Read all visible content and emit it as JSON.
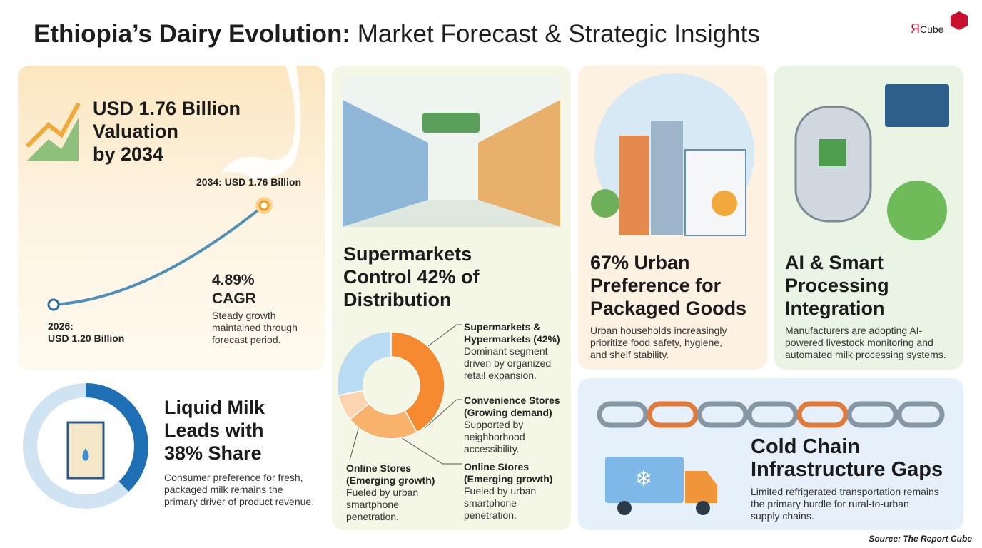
{
  "header": {
    "title_bold": "Ethiopia’s Dairy Evolution:",
    "title_rest": "Market Forecast & Strategic Insights",
    "logo_r": "Я",
    "logo_text": "Cube"
  },
  "valuation": {
    "headline": [
      "USD 1.76 Billion",
      "Valuation",
      "by 2034"
    ],
    "end_label": "2034: USD 1.76 Billion",
    "start_label": [
      "2026:",
      "USD 1.20 Billion"
    ],
    "cagr": [
      "4.89%",
      "CAGR"
    ],
    "cagr_note": [
      "Steady growth",
      "maintained through",
      "forecast period."
    ]
  },
  "distribution": {
    "headline": [
      "Supermarkets",
      "Control 42% of",
      "Distribution"
    ],
    "segments": [
      {
        "title": [
          "Supermarkets &",
          "Hypermarkets (42%)"
        ],
        "note": [
          "Dominant segment",
          "driven by organized",
          "retail expansion."
        ],
        "value": 42,
        "color": "#f5892f"
      },
      {
        "title": [
          "Convenience Stores",
          "(Growing demand)"
        ],
        "note": [
          "Supported by",
          "neighborhood",
          "accessibility."
        ],
        "value": 22,
        "color": "#f9b26b"
      },
      {
        "title": [
          "Online Stores",
          "(Emerging growth)"
        ],
        "note": [
          "Fueled by urban",
          "smartphone",
          "penetration."
        ],
        "value": 8,
        "color": "#fcd5b0"
      }
    ],
    "left_callout": {
      "title": [
        "Online Stores",
        "(Emerging growth)"
      ],
      "note": [
        "Fueled by urban",
        "smartphone",
        "penetration."
      ]
    }
  },
  "urban": {
    "headline": [
      "67% Urban",
      "Preference for",
      "Packaged Goods"
    ],
    "note": [
      "Urban households increasingly",
      "prioritize food safety, hygiene,",
      "and shelf stability."
    ]
  },
  "ai": {
    "headline": [
      "AI & Smart",
      "Processing",
      "Integration"
    ],
    "note": [
      "Manufacturers are adopting AI-",
      "powered livestock monitoring and",
      "automated milk processing systems."
    ]
  },
  "liquid_milk": {
    "headline": [
      "Liquid Milk",
      "Leads with",
      "38% Share"
    ],
    "share": 38,
    "note": [
      "Consumer preference for fresh,",
      "packaged milk remains the",
      "primary driver of product revenue."
    ]
  },
  "cold_chain": {
    "headline": [
      "Cold Chain",
      "Infrastructure Gaps"
    ],
    "note": [
      "Limited refrigerated transportation remains",
      "the primary hurdle for rural-to-urban",
      "supply chains."
    ]
  },
  "source": "Source: The Report Cube"
}
